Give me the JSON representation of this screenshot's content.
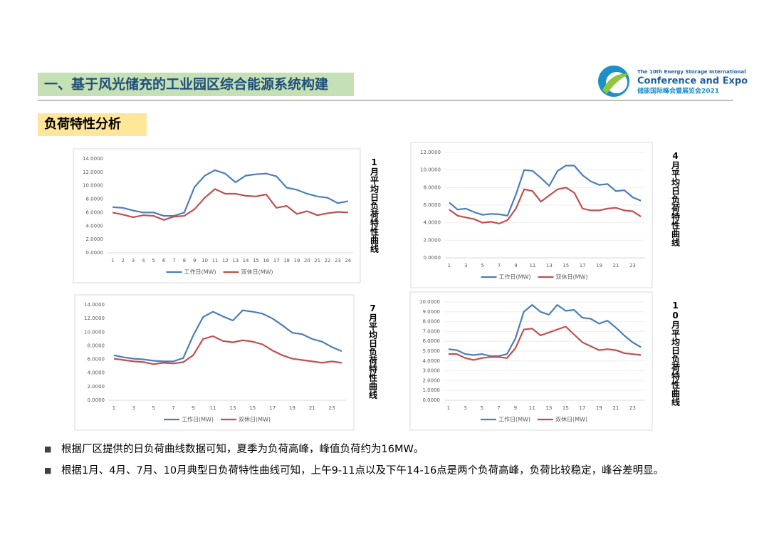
{
  "header": {
    "title": "一、基于风光储充的工业园区综合能源系统构建",
    "section": "负荷特性分析"
  },
  "logo": {
    "line1": "The 10th Energy Storage International",
    "line2": "Conference and Expo",
    "line3": "储能国际峰会暨展览会2021"
  },
  "chart_data": [
    {
      "type": "line",
      "caption": "1月平均日负荷特性曲线",
      "x": [
        1,
        2,
        3,
        4,
        5,
        6,
        7,
        8,
        9,
        10,
        11,
        12,
        13,
        14,
        15,
        16,
        17,
        18,
        19,
        20,
        21,
        22,
        23,
        24
      ],
      "xlim": [
        0.5,
        24.5
      ],
      "xticks": [
        1,
        2,
        3,
        4,
        5,
        6,
        7,
        8,
        9,
        10,
        11,
        12,
        13,
        14,
        15,
        16,
        17,
        18,
        19,
        20,
        21,
        22,
        23,
        24
      ],
      "ylim": [
        0,
        14
      ],
      "yticks": [
        {
          "value": 0,
          "label": "0.0000"
        },
        {
          "value": 2,
          "label": "2.0000"
        },
        {
          "value": 4,
          "label": "4.0000"
        },
        {
          "value": 6,
          "label": "6.0000"
        },
        {
          "value": 8,
          "label": "8.0000"
        },
        {
          "value": 10,
          "label": "10.0000"
        },
        {
          "value": 12,
          "label": "12.0000"
        },
        {
          "value": 14,
          "label": "14.0000"
        }
      ],
      "grid": false,
      "series": [
        {
          "name": "工作日(MW)",
          "color": "#4a7ebb",
          "values": [
            6.8,
            6.7,
            6.3,
            6.0,
            6.0,
            5.5,
            5.5,
            6.0,
            9.8,
            11.5,
            12.3,
            11.8,
            10.5,
            11.5,
            11.7,
            11.8,
            11.4,
            9.7,
            9.4,
            8.8,
            8.4,
            8.2,
            7.4,
            7.7
          ]
        },
        {
          "name": "双休日(MW)",
          "color": "#c0504d",
          "values": [
            6.0,
            5.7,
            5.3,
            5.6,
            5.5,
            4.9,
            5.4,
            5.5,
            6.5,
            8.2,
            9.5,
            8.8,
            8.8,
            8.5,
            8.4,
            8.7,
            6.7,
            7.0,
            5.8,
            6.2,
            5.6,
            5.9,
            6.1,
            6.0
          ]
        }
      ]
    },
    {
      "type": "line",
      "caption": "4月平均日负荷特性曲线",
      "x": [
        1,
        2,
        3,
        4,
        5,
        6,
        7,
        8,
        9,
        10,
        11,
        12,
        13,
        14,
        15,
        16,
        17,
        18,
        19,
        20,
        21,
        22,
        23,
        24
      ],
      "xlim": [
        0.5,
        24.5
      ],
      "xticks": [
        1,
        3,
        5,
        7,
        9,
        11,
        13,
        15,
        17,
        19,
        21,
        23
      ],
      "ylim": [
        0,
        12
      ],
      "yticks": [
        {
          "value": 0,
          "label": "0.0000"
        },
        {
          "value": 2,
          "label": "2.0000"
        },
        {
          "value": 4,
          "label": "4.0000"
        },
        {
          "value": 6,
          "label": "6.0000"
        },
        {
          "value": 8,
          "label": "8.0000"
        },
        {
          "value": 10,
          "label": "10.0000"
        },
        {
          "value": 12,
          "label": "12.0000"
        }
      ],
      "grid": true,
      "series": [
        {
          "name": "工作日(MW)",
          "color": "#4a7ebb",
          "values": [
            6.3,
            5.5,
            5.6,
            5.2,
            4.9,
            5.0,
            4.95,
            4.8,
            7.2,
            10.0,
            9.9,
            9.1,
            8.2,
            9.9,
            10.5,
            10.5,
            9.4,
            8.7,
            8.3,
            8.4,
            7.6,
            7.7,
            6.9,
            6.5
          ]
        },
        {
          "name": "双休日(MW)",
          "color": "#c0504d",
          "values": [
            5.5,
            4.8,
            4.6,
            4.4,
            4.0,
            4.1,
            3.9,
            4.3,
            5.6,
            7.8,
            7.6,
            6.4,
            7.1,
            7.8,
            8.0,
            7.4,
            5.6,
            5.4,
            5.4,
            5.6,
            5.7,
            5.4,
            5.3,
            4.7
          ]
        }
      ]
    },
    {
      "type": "line",
      "caption": "7月平均日负荷特性曲线",
      "x": [
        1,
        2,
        3,
        4,
        5,
        6,
        7,
        8,
        9,
        10,
        11,
        12,
        13,
        14,
        15,
        16,
        17,
        18,
        19,
        20,
        21,
        22,
        23,
        24
      ],
      "xlim": [
        0.5,
        24.5
      ],
      "xticks": [
        1,
        3,
        5,
        7,
        9,
        11,
        13,
        15,
        17,
        19,
        21,
        23
      ],
      "ylim": [
        0,
        14
      ],
      "yticks": [
        {
          "value": 0,
          "label": "0.0000"
        },
        {
          "value": 2,
          "label": "2.0000"
        },
        {
          "value": 4,
          "label": "4.0000"
        },
        {
          "value": 6,
          "label": "6.0000"
        },
        {
          "value": 8,
          "label": "8.0000"
        },
        {
          "value": 10,
          "label": "10.0000"
        },
        {
          "value": 12,
          "label": "12.0000"
        },
        {
          "value": 14,
          "label": "14.0000"
        }
      ],
      "grid": false,
      "series": [
        {
          "name": "工作日(MW)",
          "color": "#4a7ebb",
          "values": [
            6.6,
            6.3,
            6.1,
            6.0,
            5.8,
            5.7,
            5.7,
            6.2,
            9.5,
            12.2,
            13.0,
            12.3,
            11.7,
            13.2,
            13.0,
            12.7,
            12.0,
            11.0,
            9.9,
            9.7,
            9.0,
            8.6,
            7.8,
            7.2
          ]
        },
        {
          "name": "双休日(MW)",
          "color": "#c0504d",
          "values": [
            6.1,
            5.9,
            5.7,
            5.6,
            5.3,
            5.5,
            5.4,
            5.6,
            6.6,
            9.0,
            9.4,
            8.7,
            8.5,
            8.8,
            8.6,
            8.2,
            7.3,
            6.6,
            6.1,
            5.9,
            5.7,
            5.5,
            5.7,
            5.5
          ]
        }
      ]
    },
    {
      "type": "line",
      "caption": "10月平均日负荷特性曲线",
      "x": [
        1,
        2,
        3,
        4,
        5,
        6,
        7,
        8,
        9,
        10,
        11,
        12,
        13,
        14,
        15,
        16,
        17,
        18,
        19,
        20,
        21,
        22,
        23,
        24
      ],
      "xlim": [
        0.5,
        24.5
      ],
      "xticks": [
        1,
        3,
        5,
        7,
        9,
        11,
        13,
        15,
        17,
        19,
        21,
        23
      ],
      "ylim": [
        0,
        10
      ],
      "yticks": [
        {
          "value": 0,
          "label": "0.0000"
        },
        {
          "value": 1,
          "label": "1.0000"
        },
        {
          "value": 2,
          "label": "2.0000"
        },
        {
          "value": 3,
          "label": "3.0000"
        },
        {
          "value": 4,
          "label": "4.0000"
        },
        {
          "value": 5,
          "label": "5.0000"
        },
        {
          "value": 6,
          "label": "6.0000"
        },
        {
          "value": 7,
          "label": "7.0000"
        },
        {
          "value": 8,
          "label": "8.0000"
        },
        {
          "value": 9,
          "label": "9.0000"
        },
        {
          "value": 10,
          "label": "10.0000"
        }
      ],
      "grid": true,
      "series": [
        {
          "name": "工作日(MW)",
          "color": "#4a7ebb",
          "values": [
            5.2,
            5.1,
            4.7,
            4.6,
            4.7,
            4.5,
            4.5,
            4.7,
            6.3,
            9.0,
            9.7,
            9.0,
            8.7,
            9.7,
            9.1,
            9.2,
            8.4,
            8.3,
            7.8,
            8.1,
            7.4,
            6.6,
            5.9,
            5.4
          ]
        },
        {
          "name": "双休日(MW)",
          "color": "#c0504d",
          "values": [
            4.7,
            4.7,
            4.3,
            4.1,
            4.3,
            4.4,
            4.4,
            4.3,
            5.3,
            7.2,
            7.3,
            6.6,
            6.9,
            7.2,
            7.5,
            6.7,
            5.9,
            5.5,
            5.1,
            5.2,
            5.1,
            4.8,
            4.7,
            4.6
          ]
        }
      ]
    }
  ],
  "bullets": [
    "根据厂区提供的日负荷曲线数据可知，夏季为负荷高峰，峰值负荷约为16MW。",
    "根据1月、4月、7月、10月典型日负荷特性曲线可知，上午9-11点以及下午14-16点是两个负荷高峰，负荷比较稳定，峰谷差明显。"
  ]
}
